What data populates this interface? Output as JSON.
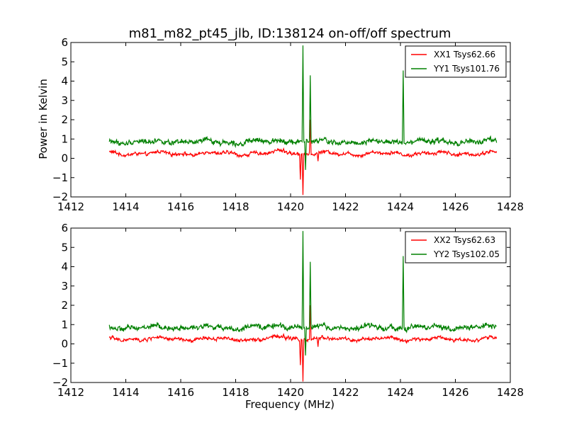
{
  "chart_data": [
    {
      "type": "line",
      "title": "m81_m82_pt45_jlb, ID:138124 on-off/off spectrum",
      "xlabel": "",
      "ylabel": "Power in Kelvin",
      "xlim": [
        1412,
        1428
      ],
      "ylim": [
        -2,
        6
      ],
      "xticks": [
        "1412",
        "1414",
        "1416",
        "1418",
        "1420",
        "1422",
        "1424",
        "1426",
        "1428"
      ],
      "yticks": [
        "−2",
        "−1",
        "0",
        "1",
        "2",
        "3",
        "4",
        "5",
        "6"
      ],
      "grid": false,
      "legend_position": "top-right",
      "series": [
        {
          "name": "XX1 Tsys62.66",
          "color": "#ff0000",
          "x_range": [
            1413.4,
            1427.5
          ],
          "baseline": 0.25,
          "noise": 0.12,
          "features": [
            {
              "x": 1419.75,
              "y": 0.5
            },
            {
              "x": 1420.35,
              "y": -1.1
            },
            {
              "x": 1420.45,
              "y": -1.9
            },
            {
              "x": 1420.72,
              "y": 2.0
            },
            {
              "x": 1421.0,
              "y": -0.15
            }
          ]
        },
        {
          "name": "YY1 Tsys101.76",
          "color": "#008000",
          "x_range": [
            1413.4,
            1427.5
          ],
          "baseline": 0.85,
          "noise": 0.18,
          "features": [
            {
              "x": 1420.45,
              "y": 5.85
            },
            {
              "x": 1420.55,
              "y": -0.6
            },
            {
              "x": 1420.72,
              "y": 4.3
            },
            {
              "x": 1424.1,
              "y": 4.55
            }
          ]
        }
      ]
    },
    {
      "type": "line",
      "title": "",
      "xlabel": "Frequency (MHz)",
      "ylabel": "",
      "xlim": [
        1412,
        1428
      ],
      "ylim": [
        -2,
        6
      ],
      "xticks": [
        "1412",
        "1414",
        "1416",
        "1418",
        "1420",
        "1422",
        "1424",
        "1426",
        "1428"
      ],
      "yticks": [
        "−2",
        "−1",
        "0",
        "1",
        "2",
        "3",
        "4",
        "5",
        "6"
      ],
      "grid": false,
      "legend_position": "top-right",
      "series": [
        {
          "name": "XX2 Tsys62.63",
          "color": "#ff0000",
          "x_range": [
            1413.4,
            1427.5
          ],
          "baseline": 0.25,
          "noise": 0.12,
          "features": [
            {
              "x": 1419.75,
              "y": 0.5
            },
            {
              "x": 1420.35,
              "y": -1.1
            },
            {
              "x": 1420.45,
              "y": -1.95
            },
            {
              "x": 1420.72,
              "y": 2.0
            },
            {
              "x": 1421.0,
              "y": -0.15
            }
          ]
        },
        {
          "name": "YY2 Tsys102.05",
          "color": "#008000",
          "x_range": [
            1413.4,
            1427.5
          ],
          "baseline": 0.85,
          "noise": 0.18,
          "features": [
            {
              "x": 1420.45,
              "y": 5.85
            },
            {
              "x": 1420.55,
              "y": -0.6
            },
            {
              "x": 1420.72,
              "y": 4.25
            },
            {
              "x": 1424.1,
              "y": 4.55
            }
          ]
        }
      ]
    }
  ]
}
